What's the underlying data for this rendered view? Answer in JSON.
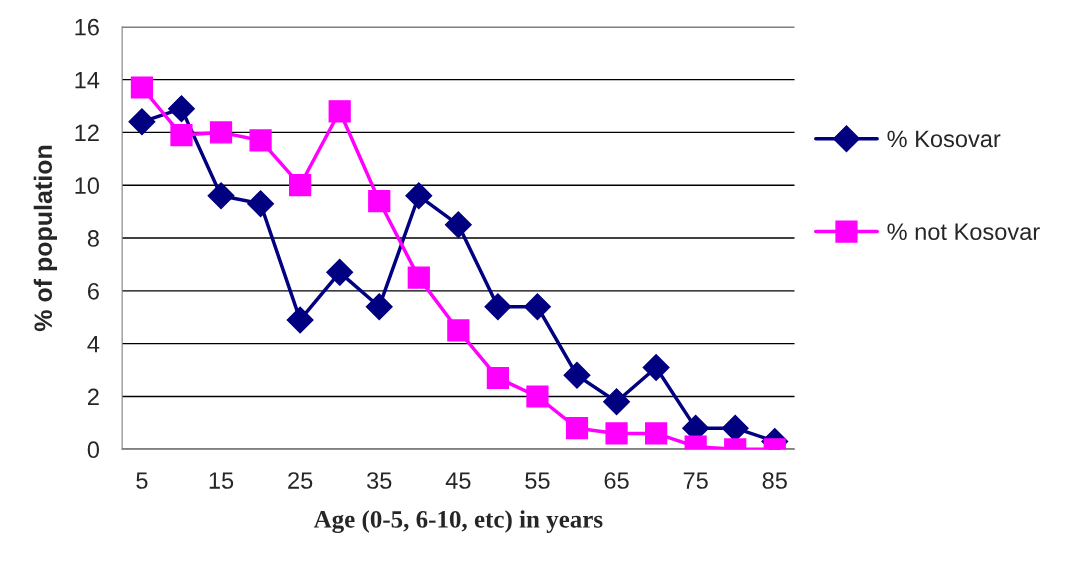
{
  "chart_data": {
    "type": "line",
    "xlabel": "Age (0-5, 6-10, etc) in years",
    "ylabel": "% of population",
    "x": [
      5,
      10,
      15,
      20,
      25,
      30,
      35,
      40,
      45,
      50,
      55,
      60,
      65,
      70,
      75,
      80,
      85
    ],
    "series": [
      {
        "name": "% Kosovar",
        "color": "#000080",
        "marker": "diamond",
        "values": [
          12.4,
          12.9,
          9.6,
          9.3,
          4.9,
          6.7,
          5.4,
          9.6,
          8.5,
          5.4,
          5.4,
          2.8,
          1.8,
          3.1,
          0.8,
          0.8,
          0.3
        ]
      },
      {
        "name": "% not Kosovar",
        "color": "#ff00ff",
        "marker": "square",
        "values": [
          13.7,
          11.9,
          12.0,
          11.7,
          10.0,
          12.8,
          9.4,
          6.5,
          4.5,
          2.7,
          2.0,
          0.8,
          0.6,
          0.6,
          0.1,
          0.0,
          0.0
        ]
      }
    ],
    "xlim": [
      2.5,
      87.5
    ],
    "xticks": [
      5,
      15,
      25,
      35,
      45,
      55,
      65,
      75,
      85
    ],
    "ylim": [
      0,
      16
    ],
    "yticks": [
      0,
      2,
      4,
      6,
      8,
      10,
      12,
      14,
      16
    ],
    "grid": "y",
    "legend": "right",
    "line_style": "solid"
  }
}
